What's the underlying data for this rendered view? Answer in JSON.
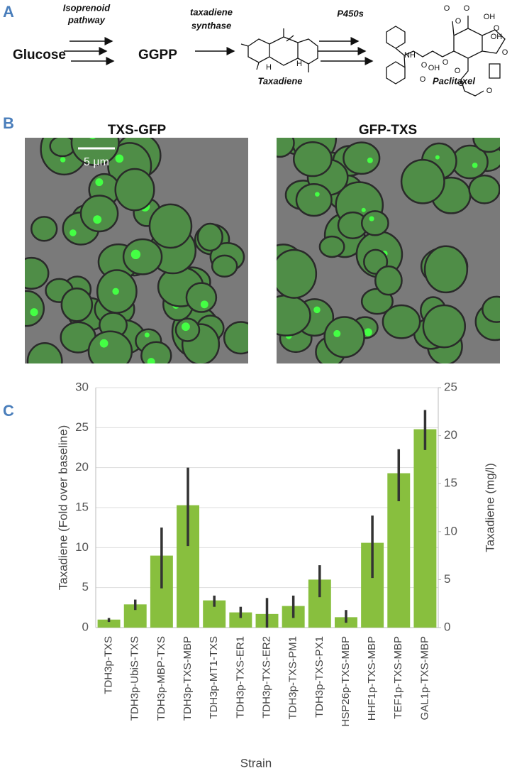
{
  "panel_a": {
    "label": "A",
    "glucose": "Glucose",
    "pathway": [
      "Isoprenoid",
      "pathway"
    ],
    "ggpp": "GGPP",
    "synthase": [
      "taxadiene",
      "synthase"
    ],
    "taxadiene": "Taxadiene",
    "taxadiene_atoms": [
      "H",
      "H"
    ],
    "p450": "P450s",
    "paclitaxel": "Paclitaxel",
    "paclitaxel_atoms": [
      "NH",
      "O",
      "OH",
      "O",
      "O",
      "O",
      "O",
      "O",
      "OH",
      "O",
      "OH",
      "O",
      "O",
      "O",
      "O"
    ]
  },
  "panel_b": {
    "label": "B",
    "left_title": "TXS-GFP",
    "right_title": "GFP-TXS",
    "scale": "5 µm"
  },
  "chart_data": {
    "type": "bar",
    "label": "C",
    "categories": [
      "TDH3p-TXS",
      "TDH3p-UbiS-TXS",
      "TDH3p-MBP-TXS",
      "TDH3p-TXS-MBP",
      "TDH3p-MT1-TXS",
      "TDH3p-TXS-ER1",
      "TDH3p-TXS-ER2",
      "TDH3p-TXS-PM1",
      "TDH3p-TXS-PX1",
      "HSP26p-TXS-MBP",
      "HHF1p-TXS-MBP",
      "TEF1p-TXS-MBP",
      "GAL1p-TXS-MBP"
    ],
    "values": [
      1.0,
      2.9,
      9.0,
      15.3,
      3.4,
      1.9,
      1.7,
      2.7,
      6.0,
      1.3,
      10.6,
      19.3,
      24.8
    ],
    "error_low": [
      0.7,
      2.2,
      4.9,
      10.2,
      2.6,
      1.2,
      0.0,
      1.2,
      3.8,
      0.6,
      6.2,
      15.8,
      22.2
    ],
    "error_high": [
      1.2,
      3.5,
      12.5,
      20.0,
      4.0,
      2.6,
      3.7,
      4.0,
      7.8,
      2.2,
      14.0,
      22.3,
      27.2
    ],
    "color": "#88bf3e",
    "error_color": "#333333",
    "ylim": [
      0,
      30
    ],
    "yticks": [
      0,
      5,
      10,
      15,
      20,
      25,
      30
    ],
    "y2lim": [
      0,
      25
    ],
    "y2ticks": [
      0,
      5,
      10,
      15,
      20,
      25
    ],
    "ylabel": "Taxadiene (Fold over baseline)",
    "y2label": "Taxadiene (mg/l)",
    "xlabel": "Strain",
    "grid": true
  }
}
